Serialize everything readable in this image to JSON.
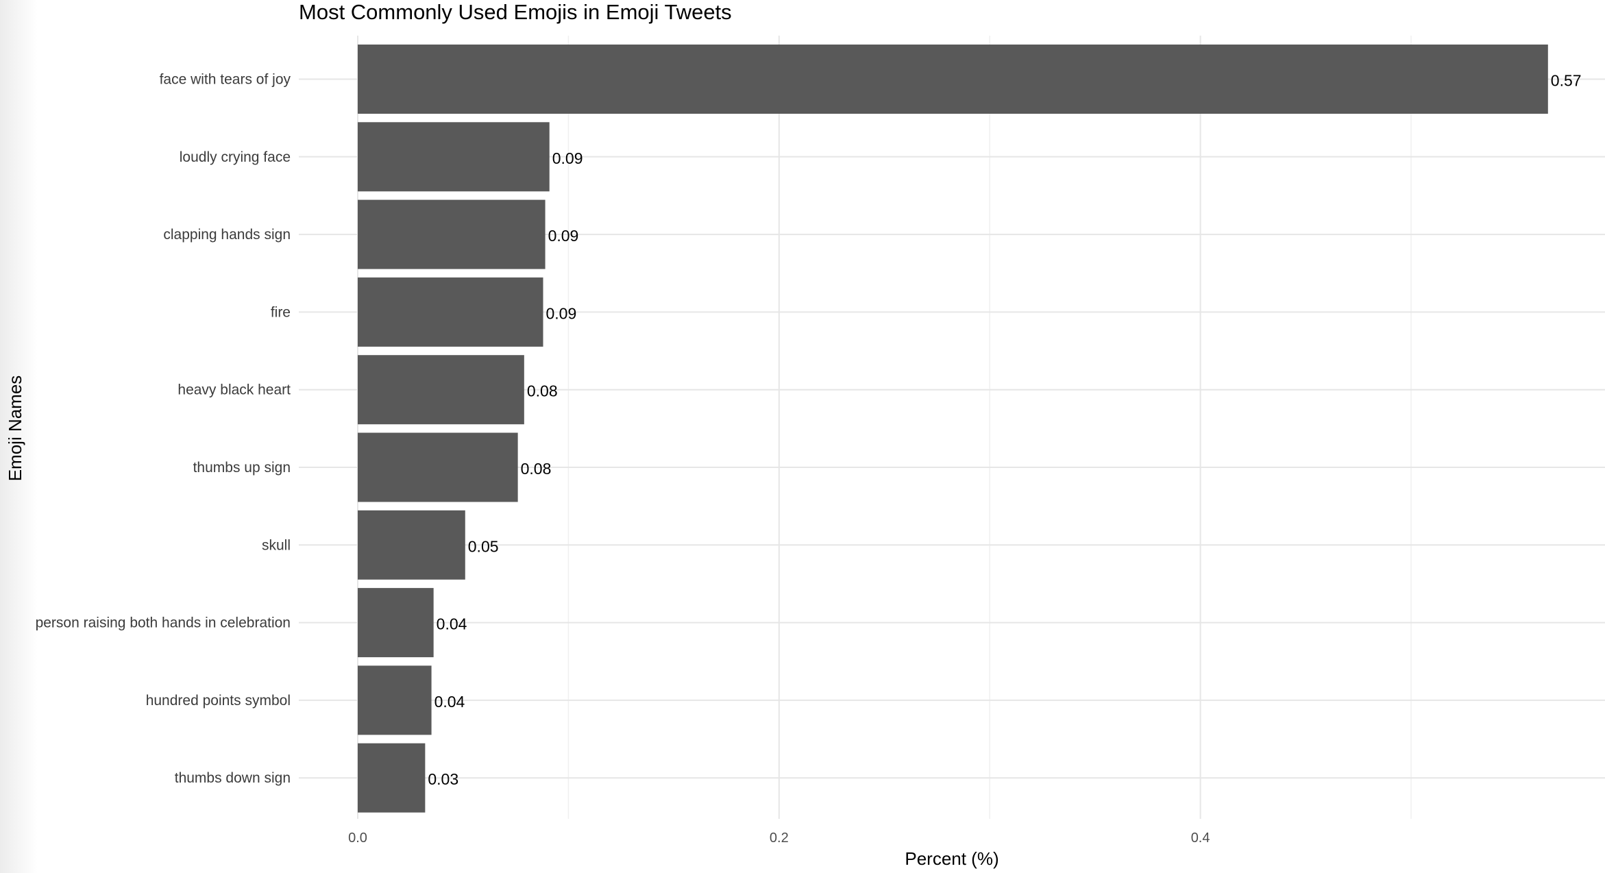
{
  "chart_data": {
    "type": "bar",
    "orientation": "horizontal",
    "title": "Most Commonly Used Emojis in Emoji Tweets",
    "xlabel": "Percent (%)",
    "ylabel": "Emoji Names",
    "xlim": [
      0,
      0.6
    ],
    "x_ticks": [
      0.0,
      0.2,
      0.4
    ],
    "x_tick_labels": [
      "0.0",
      "0.2",
      "0.4"
    ],
    "grid": true,
    "bar_color": "#595959",
    "categories": [
      "face with tears of joy",
      "loudly crying face",
      "clapping hands sign",
      "fire",
      "heavy black heart",
      "thumbs up sign",
      "skull",
      "person raising both hands in celebration",
      "hundred points symbol",
      "thumbs down sign"
    ],
    "values": [
      0.565,
      0.091,
      0.089,
      0.088,
      0.079,
      0.076,
      0.051,
      0.036,
      0.035,
      0.032
    ],
    "value_labels": [
      "0.57",
      "0.09",
      "0.09",
      "0.09",
      "0.08",
      "0.08",
      "0.05",
      "0.04",
      "0.04",
      "0.03"
    ]
  }
}
